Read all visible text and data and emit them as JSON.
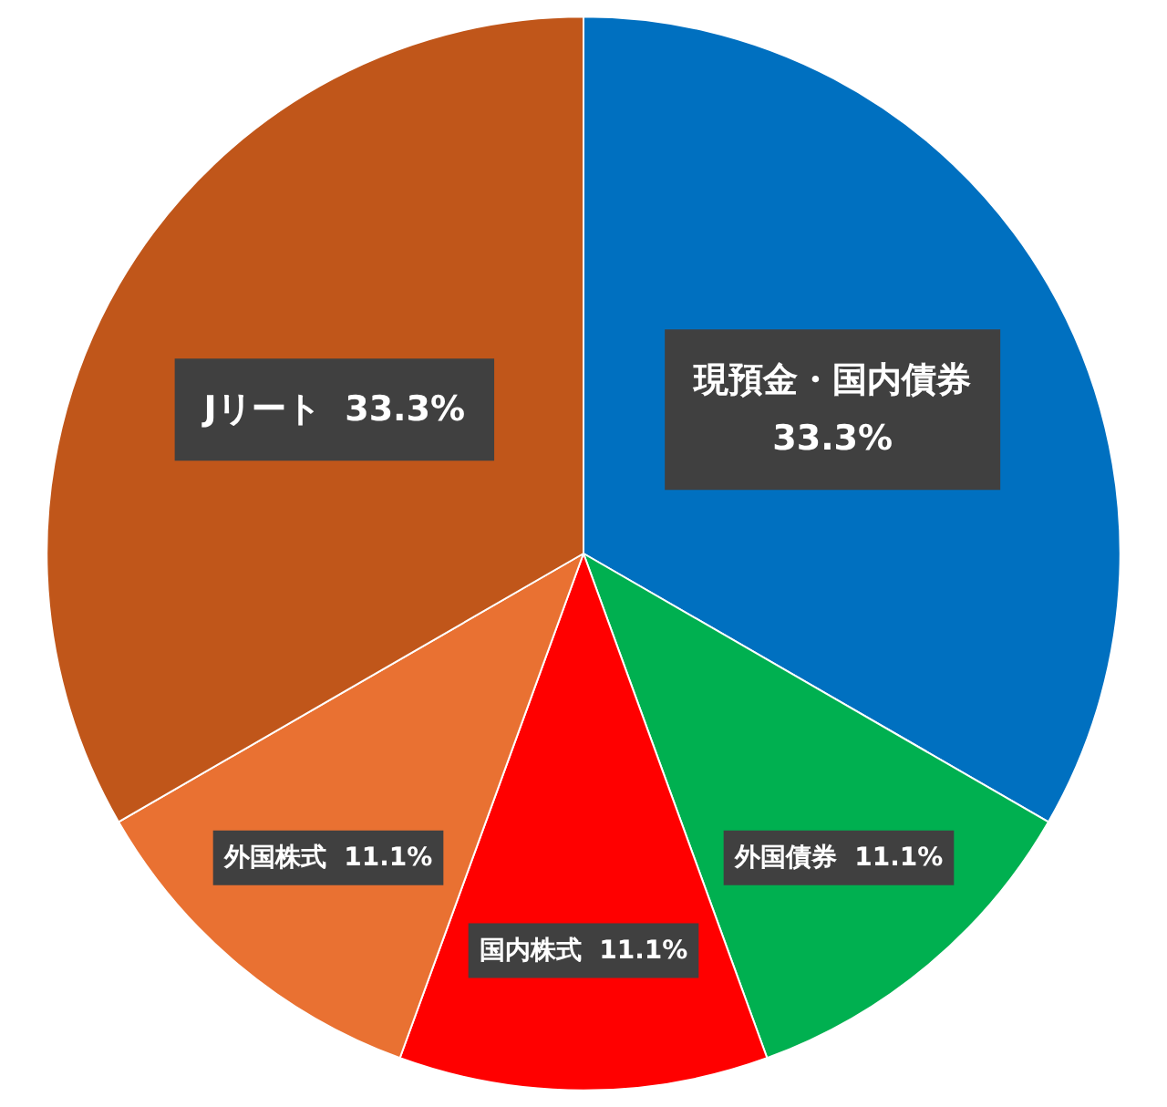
{
  "chart_data": {
    "type": "pie",
    "categories": [
      "現預金・国内債券",
      "外国債券",
      "国内株式",
      "外国株式",
      "Jリート"
    ],
    "values": [
      33.3,
      11.1,
      11.1,
      11.1,
      33.3
    ],
    "colors": [
      "#0070c0",
      "#00b050",
      "#ff0000",
      "#e97132",
      "#c0561a"
    ],
    "value_labels": [
      "33.3%",
      "11.1%",
      "11.1%",
      "11.1%",
      "33.3%"
    ],
    "legend": false
  }
}
